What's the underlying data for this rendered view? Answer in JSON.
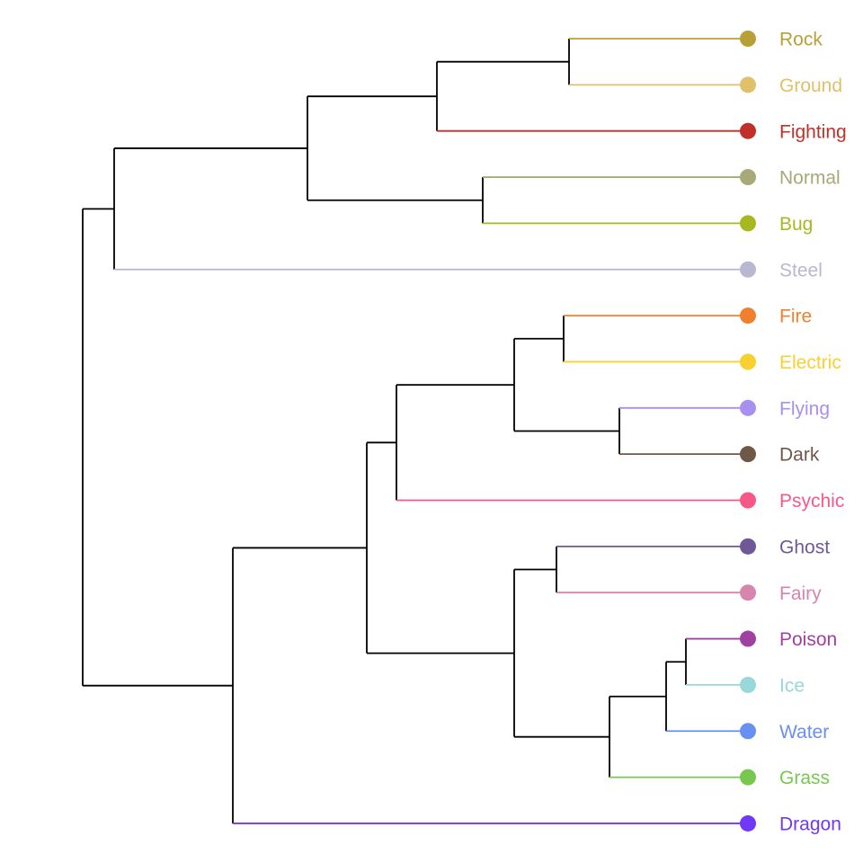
{
  "dendrogram": {
    "tree": {
      "children": [
        {
          "children": [
            {
              "children": [
                {
                  "children": [
                    {
                      "children": [
                        {
                          "leaf": "Rock"
                        },
                        {
                          "leaf": "Ground"
                        }
                      ]
                    },
                    {
                      "leaf": "Fighting"
                    }
                  ]
                },
                {
                  "children": [
                    {
                      "leaf": "Normal"
                    },
                    {
                      "leaf": "Bug"
                    }
                  ]
                }
              ]
            },
            {
              "leaf": "Steel"
            }
          ]
        },
        {
          "children": [
            {
              "children": [
                {
                  "children": [
                    {
                      "children": [
                        {
                          "children": [
                            {
                              "leaf": "Fire"
                            },
                            {
                              "leaf": "Electric"
                            }
                          ]
                        },
                        {
                          "children": [
                            {
                              "leaf": "Flying"
                            },
                            {
                              "leaf": "Dark"
                            }
                          ]
                        }
                      ]
                    },
                    {
                      "leaf": "Psychic"
                    }
                  ]
                },
                {
                  "children": [
                    {
                      "children": [
                        {
                          "leaf": "Ghost"
                        },
                        {
                          "leaf": "Fairy"
                        }
                      ]
                    },
                    {
                      "children": [
                        {
                          "children": [
                            {
                              "children": [
                                {
                                  "leaf": "Poison"
                                },
                                {
                                  "leaf": "Ice"
                                }
                              ]
                            },
                            {
                              "leaf": "Water"
                            }
                          ]
                        },
                        {
                          "leaf": "Grass"
                        }
                      ]
                    }
                  ]
                }
              ]
            },
            {
              "leaf": "Dragon"
            }
          ]
        }
      ]
    },
    "leaf_colors": {
      "Rock": "#B8A038",
      "Ground": "#E0C068",
      "Fighting": "#C03028",
      "Normal": "#A8A878",
      "Bug": "#A8B820",
      "Steel": "#B8B8D0",
      "Fire": "#F08030",
      "Electric": "#F8D030",
      "Flying": "#A890F0",
      "Dark": "#705848",
      "Psychic": "#F85888",
      "Ghost": "#705898",
      "Fairy": "#D685AD",
      "Poison": "#A040A0",
      "Ice": "#98D8D8",
      "Water": "#6890F0",
      "Grass": "#78C850",
      "Dragon": "#7038F8"
    },
    "internal_branch_color": "#000000",
    "tip_marker": "filled-circle"
  }
}
